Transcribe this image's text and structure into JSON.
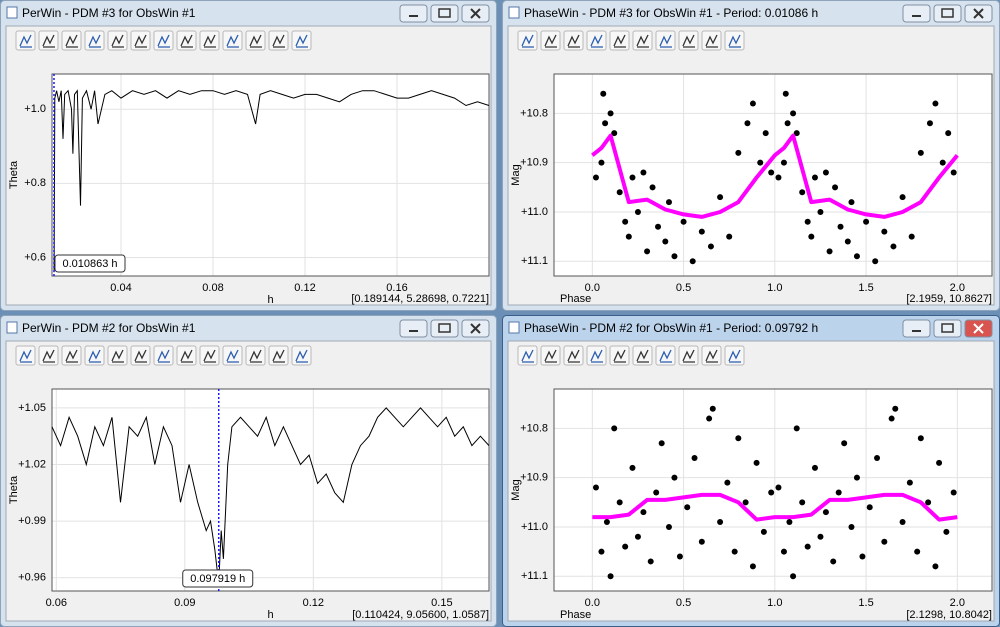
{
  "windows": [
    {
      "title": "PerWin - PDM #3 for ObsWin #1",
      "active": false,
      "toolbar_icons": 13,
      "chart": {
        "type": "line",
        "x_label": "h",
        "y_label": "Theta",
        "color": "#000000",
        "grid": true,
        "y_inverted": false,
        "xlim": [
          0.01,
          0.2
        ],
        "ylim": [
          0.55,
          1.095
        ],
        "xticks": [
          0.04,
          0.08,
          0.12,
          0.16
        ],
        "yticks": [
          {
            "value": 1.0,
            "label": "+1.0"
          },
          {
            "value": 0.8,
            "label": "+0.8"
          },
          {
            "value": 0.6,
            "label": "+0.6"
          }
        ],
        "x": [
          0.0109,
          0.0112,
          0.012,
          0.013,
          0.014,
          0.0148,
          0.0155,
          0.017,
          0.0185,
          0.0191,
          0.0198,
          0.021,
          0.0224,
          0.0232,
          0.025,
          0.027,
          0.0285,
          0.03,
          0.033,
          0.036,
          0.04,
          0.045,
          0.05,
          0.055,
          0.06,
          0.065,
          0.07,
          0.075,
          0.08,
          0.085,
          0.09,
          0.095,
          0.0985,
          0.1005,
          0.105,
          0.11,
          0.115,
          0.12,
          0.125,
          0.13,
          0.135,
          0.14,
          0.145,
          0.15,
          0.155,
          0.16,
          0.165,
          0.17,
          0.175,
          0.18,
          0.185,
          0.19,
          0.195,
          0.2
        ],
        "y": [
          0.56,
          1.03,
          1.05,
          1.02,
          1.05,
          0.92,
          1.04,
          1.05,
          1.0,
          0.88,
          1.04,
          1.05,
          0.74,
          1.03,
          1.05,
          1.0,
          1.05,
          0.96,
          1.04,
          1.05,
          1.03,
          1.05,
          1.04,
          1.05,
          1.03,
          1.05,
          1.04,
          1.05,
          1.05,
          1.04,
          1.05,
          1.04,
          0.96,
          1.04,
          1.05,
          1.04,
          1.03,
          1.04,
          1.04,
          1.03,
          1.02,
          1.04,
          1.05,
          1.05,
          1.04,
          1.03,
          1.03,
          1.04,
          1.05,
          1.04,
          1.03,
          1.01,
          1.02,
          1.01
        ],
        "cursor": {
          "value": 0.010863,
          "label": "0.010863 h"
        },
        "readout": "[0.189144, 5.28698, 0.7221]",
        "readout_color": "#000000"
      }
    },
    {
      "title": "PhaseWin - PDM #3 for ObsWin #1 - Period: 0.01086 h",
      "active": false,
      "toolbar_icons": 10,
      "chart": {
        "type": "scatter",
        "x_label": "Phase",
        "y_label": "Mag",
        "color": "#000000",
        "grid": true,
        "y_inverted": true,
        "xlim": [
          -0.21,
          2.19
        ],
        "ylim": [
          10.72,
          11.13
        ],
        "xticks": [
          {
            "value": 0,
            "label": "0.0"
          },
          0.5,
          {
            "value": 1,
            "label": "1.0"
          },
          1.5,
          {
            "value": 2,
            "label": "2.0"
          }
        ],
        "yticks": [
          {
            "value": 10.8,
            "label": "+10.8"
          },
          {
            "value": 10.9,
            "label": "+10.9"
          },
          {
            "value": 11.0,
            "label": "+11.0"
          },
          {
            "value": 11.1,
            "label": "+11.1"
          }
        ],
        "x": [
          0.02,
          0.05,
          0.07,
          0.06,
          0.1,
          0.12,
          0.15,
          0.18,
          0.2,
          0.22,
          0.25,
          0.28,
          0.3,
          0.33,
          0.36,
          0.4,
          0.42,
          0.45,
          0.5,
          0.55,
          0.6,
          0.65,
          0.7,
          0.75,
          0.8,
          0.85,
          0.88,
          0.92,
          0.95,
          0.98,
          1.02,
          1.05,
          1.07,
          1.06,
          1.1,
          1.12,
          1.15,
          1.18,
          1.2,
          1.22,
          1.25,
          1.28,
          1.3,
          1.33,
          1.36,
          1.4,
          1.42,
          1.45,
          1.5,
          1.55,
          1.6,
          1.65,
          1.7,
          1.75,
          1.8,
          1.85,
          1.88,
          1.92,
          1.95,
          1.98
        ],
        "y": [
          10.93,
          10.9,
          10.82,
          10.76,
          10.8,
          10.84,
          10.96,
          11.02,
          11.05,
          10.93,
          11.0,
          10.92,
          11.08,
          10.95,
          11.03,
          11.06,
          10.98,
          11.09,
          11.02,
          11.1,
          11.04,
          11.07,
          10.97,
          11.05,
          10.88,
          10.82,
          10.78,
          10.9,
          10.84,
          10.92,
          10.93,
          10.9,
          10.82,
          10.76,
          10.8,
          10.84,
          10.96,
          11.02,
          11.05,
          10.93,
          11.0,
          10.92,
          11.08,
          10.95,
          11.03,
          11.06,
          10.98,
          11.09,
          11.02,
          11.1,
          11.04,
          11.07,
          10.97,
          11.05,
          10.88,
          10.82,
          10.78,
          10.9,
          10.84,
          10.92
        ],
        "fit": {
          "color": "#ff00ff",
          "x": [
            0,
            0.05,
            0.1,
            0.2,
            0.3,
            0.4,
            0.5,
            0.6,
            0.7,
            0.8,
            0.9,
            1.0,
            1.05,
            1.1,
            1.2,
            1.3,
            1.4,
            1.5,
            1.6,
            1.7,
            1.8,
            1.9,
            2.0
          ],
          "y": [
            10.885,
            10.87,
            10.845,
            10.98,
            10.975,
            10.995,
            11.005,
            11.01,
            11.0,
            10.98,
            10.93,
            10.885,
            10.87,
            10.845,
            10.98,
            10.975,
            10.995,
            11.005,
            11.01,
            11.0,
            10.98,
            10.93,
            10.885
          ]
        },
        "readout": "[2.1959, 10.8627]",
        "readout_color": "#1a3cff"
      }
    },
    {
      "title": "PerWin - PDM #2 for ObsWin #1",
      "active": false,
      "toolbar_icons": 13,
      "chart": {
        "type": "line",
        "x_label": "h",
        "y_label": "Theta",
        "color": "#000000",
        "grid": true,
        "y_inverted": false,
        "xlim": [
          0.059,
          0.161
        ],
        "ylim": [
          0.953,
          1.06
        ],
        "xticks": [
          0.06,
          0.09,
          0.12,
          0.15
        ],
        "yticks": [
          {
            "value": 1.05,
            "label": "+1.05"
          },
          {
            "value": 1.02,
            "label": "+1.02"
          },
          {
            "value": 0.99,
            "label": "+0.99"
          },
          {
            "value": 0.96,
            "label": "+0.96"
          }
        ],
        "x": [
          0.059,
          0.061,
          0.063,
          0.065,
          0.067,
          0.069,
          0.071,
          0.073,
          0.075,
          0.077,
          0.079,
          0.081,
          0.083,
          0.085,
          0.087,
          0.089,
          0.091,
          0.093,
          0.095,
          0.096,
          0.097,
          0.0979,
          0.0985,
          0.099,
          0.1,
          0.101,
          0.103,
          0.105,
          0.107,
          0.109,
          0.111,
          0.113,
          0.115,
          0.117,
          0.119,
          0.121,
          0.123,
          0.125,
          0.127,
          0.129,
          0.131,
          0.133,
          0.135,
          0.137,
          0.139,
          0.141,
          0.143,
          0.145,
          0.147,
          0.149,
          0.151,
          0.153,
          0.155,
          0.157,
          0.159,
          0.161
        ],
        "y": [
          1.04,
          1.03,
          1.045,
          1.035,
          1.02,
          1.04,
          1.03,
          1.045,
          1.0,
          1.04,
          1.035,
          1.045,
          1.02,
          1.04,
          1.03,
          1.0,
          1.02,
          1.0,
          0.985,
          0.99,
          0.975,
          0.957,
          0.985,
          0.97,
          1.02,
          1.04,
          1.045,
          1.04,
          1.035,
          1.045,
          1.03,
          1.04,
          1.03,
          1.02,
          1.025,
          1.01,
          1.015,
          1.005,
          1.0,
          1.02,
          1.03,
          1.035,
          1.045,
          1.05,
          1.045,
          1.04,
          1.045,
          1.05,
          1.045,
          1.04,
          1.045,
          1.035,
          1.04,
          1.03,
          1.035,
          1.03
        ],
        "cursor": {
          "value": 0.097919,
          "label": "0.097919 h"
        },
        "readout": "[0.110424, 9.05600, 1.0587]",
        "readout_color": "#000000"
      }
    },
    {
      "title": "PhaseWin - PDM #2 for ObsWin #1 - Period: 0.09792 h",
      "active": true,
      "toolbar_icons": 10,
      "chart": {
        "type": "scatter",
        "x_label": "Phase",
        "y_label": "Mag",
        "color": "#000000",
        "grid": true,
        "y_inverted": true,
        "xlim": [
          -0.21,
          2.19
        ],
        "ylim": [
          10.72,
          11.13
        ],
        "xticks": [
          {
            "value": 0,
            "label": "0.0"
          },
          0.5,
          {
            "value": 1,
            "label": "1.0"
          },
          1.5,
          {
            "value": 2,
            "label": "2.0"
          }
        ],
        "yticks": [
          {
            "value": 10.8,
            "label": "+10.8"
          },
          {
            "value": 10.9,
            "label": "+10.9"
          },
          {
            "value": 11.0,
            "label": "+11.0"
          },
          {
            "value": 11.1,
            "label": "+11.1"
          }
        ],
        "x": [
          0.02,
          0.05,
          0.08,
          0.1,
          0.12,
          0.15,
          0.18,
          0.22,
          0.25,
          0.28,
          0.32,
          0.35,
          0.38,
          0.42,
          0.45,
          0.48,
          0.52,
          0.56,
          0.6,
          0.64,
          0.66,
          0.7,
          0.74,
          0.78,
          0.8,
          0.84,
          0.88,
          0.9,
          0.94,
          0.98,
          1.02,
          1.05,
          1.08,
          1.1,
          1.12,
          1.15,
          1.18,
          1.22,
          1.25,
          1.28,
          1.32,
          1.35,
          1.38,
          1.42,
          1.45,
          1.48,
          1.52,
          1.56,
          1.6,
          1.64,
          1.66,
          1.7,
          1.74,
          1.78,
          1.8,
          1.84,
          1.88,
          1.9,
          1.94,
          1.98
        ],
        "y": [
          10.92,
          11.05,
          10.99,
          11.1,
          10.8,
          10.95,
          11.04,
          10.88,
          11.02,
          10.97,
          11.07,
          10.93,
          10.83,
          11.0,
          10.9,
          11.06,
          10.96,
          10.86,
          11.03,
          10.78,
          10.76,
          10.99,
          10.91,
          11.05,
          10.82,
          10.95,
          11.08,
          10.87,
          11.01,
          10.93,
          10.92,
          11.05,
          10.99,
          11.1,
          10.8,
          10.95,
          11.04,
          10.88,
          11.02,
          10.97,
          11.07,
          10.93,
          10.83,
          11.0,
          10.9,
          11.06,
          10.96,
          10.86,
          11.03,
          10.78,
          10.76,
          10.99,
          10.91,
          11.05,
          10.82,
          10.95,
          11.08,
          10.87,
          11.01,
          10.93
        ],
        "fit": {
          "color": "#ff00ff",
          "x": [
            0,
            0.1,
            0.2,
            0.3,
            0.4,
            0.5,
            0.6,
            0.7,
            0.8,
            0.9,
            1.0,
            1.1,
            1.2,
            1.3,
            1.4,
            1.5,
            1.6,
            1.7,
            1.8,
            1.9,
            2.0
          ],
          "y": [
            10.98,
            10.98,
            10.975,
            10.945,
            10.945,
            10.94,
            10.935,
            10.935,
            10.95,
            10.985,
            10.98,
            10.98,
            10.975,
            10.945,
            10.945,
            10.94,
            10.935,
            10.935,
            10.95,
            10.985,
            10.98
          ]
        },
        "readout": "[2.1298, 10.8042]",
        "readout_color": "#1a3cff"
      }
    }
  ]
}
